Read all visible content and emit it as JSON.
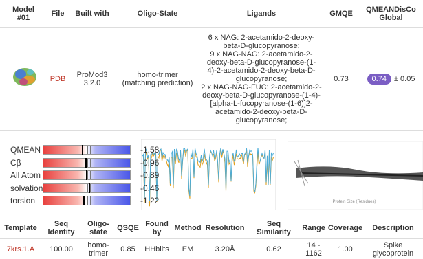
{
  "model_table": {
    "headers": [
      "Model\n#01",
      "File",
      "Built with",
      "Oligo-State",
      "Ligands",
      "GMQE",
      "QMEANDisCo\nGlobal"
    ],
    "file": "PDB",
    "built_with": "ProMod3\n3.2.0",
    "oligo_state": "homo-trimer\n(matching prediction)",
    "ligands": [
      "6 x NAG: 2-acetamido-2-deoxy-",
      "beta-D-glucopyranose;",
      "9 x NAG-NAG: 2-acetamido-2-",
      "deoxy-beta-D-glucopyranose-(1-",
      "4)-2-acetamido-2-deoxy-beta-D-",
      "glucopyranose;",
      "2 x NAG-NAG-FUC: 2-acetamido-2-",
      "deoxy-beta-D-glucopyranose-(1-4)-",
      "[alpha-L-fucopyranose-(1-6)]2-",
      "acetamido-2-deoxy-beta-D-",
      "glucopyranose;"
    ],
    "gmqe": "0.73",
    "qmeandisco": "0.74",
    "qmeandisco_error": "± 0.05"
  },
  "quality": [
    {
      "label": "QMEAN",
      "value": "-1.58"
    },
    {
      "label": "Cβ",
      "value": "-0.96"
    },
    {
      "label": "All Atom",
      "value": "-0.89"
    },
    {
      "label": "solvation",
      "value": "-0.46"
    },
    {
      "label": "torsion",
      "value": "-1.22"
    }
  ],
  "comparison_axis_label": "Protein Size (Residues)",
  "template_table": {
    "headers": [
      "Template",
      "Seq\nIdentity",
      "Oligo-\nstate",
      "QSQE",
      "Found\nby",
      "Method",
      "Resolution",
      "Seq\nSimilarity",
      "Range",
      "Coverage",
      "Description"
    ],
    "row": [
      "7krs.1.A",
      "100.00",
      "homo-\ntrimer",
      "0.85",
      "HHblits",
      "EM",
      "3.20Å",
      "0.62",
      "14 -\n1162",
      "1.00",
      "Spike\nglycoprotein"
    ]
  }
}
